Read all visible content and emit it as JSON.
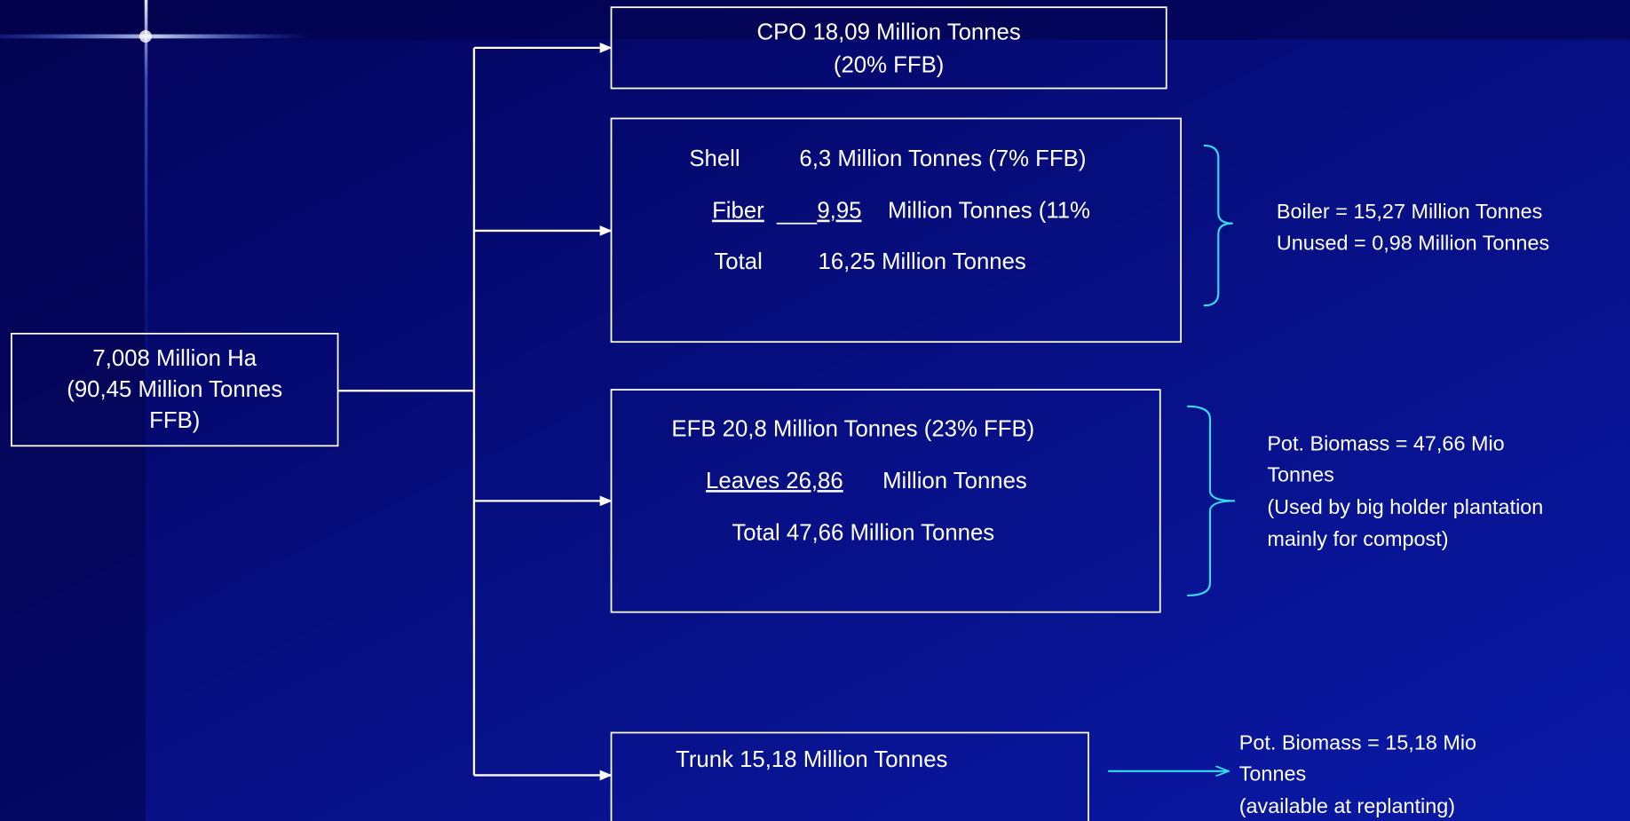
{
  "source": {
    "lines": [
      "7,008  Million Ha",
      "(90,45 Million Tonnes",
      "FFB)"
    ]
  },
  "cpo": {
    "lines": [
      "CPO 18,09  Million Tonnes",
      "(20% FFB)"
    ]
  },
  "kernel_residue": {
    "shell": {
      "label": "Shell",
      "text": "6,3 Million Tonnes (7% FFB)"
    },
    "fiber": {
      "label": "Fiber",
      "value": "9,95",
      "text": "Million Tonnes (11%"
    },
    "total": {
      "label": "Total",
      "text": "16,25 Million Tonnes"
    }
  },
  "boiler_note": {
    "lines": [
      "Boiler = 15,27  Million Tonnes",
      "Unused = 0,98 Million Tonnes"
    ]
  },
  "field_residue": {
    "efb": "EFB 20,8  Million Tonnes (23% FFB)",
    "leaves": {
      "underlined": "Leaves 26,86",
      "text": "Million Tonnes"
    },
    "total": "Total 47,66 Million Tonnes"
  },
  "biomass_note": {
    "lines": [
      "Pot. Biomass =  47,66  Mio",
      "Tonnes",
      "(Used by big holder plantation",
      "mainly for compost)"
    ]
  },
  "trunk": {
    "text": "Trunk 15,18  Million Tonnes"
  },
  "trunk_note": {
    "lines": [
      "Pot. Biomass = 15,18  Mio",
      "Tonnes",
      "(available at replanting)"
    ]
  }
}
